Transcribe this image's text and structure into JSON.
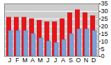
{
  "chart_data": {
    "type": "bar",
    "categories": [
      "J",
      "F",
      "M",
      "A",
      "M",
      "J",
      "J",
      "A",
      "S",
      "O",
      "N",
      "D"
    ],
    "series": [
      {
        "color": "#e3161c",
        "values": [
          26,
          26,
          26,
          25,
          24,
          23,
          23,
          25,
          29,
          31,
          29,
          27
        ]
      },
      {
        "color": "#7e9fd4",
        "values": [
          17,
          17,
          17,
          15,
          12,
          10,
          9,
          11,
          15,
          18,
          18,
          17
        ]
      }
    ],
    "ylim": [
      0,
      35
    ],
    "yticks": [
      0,
      5,
      10,
      15,
      20,
      25,
      30,
      35
    ],
    "grid": true
  }
}
